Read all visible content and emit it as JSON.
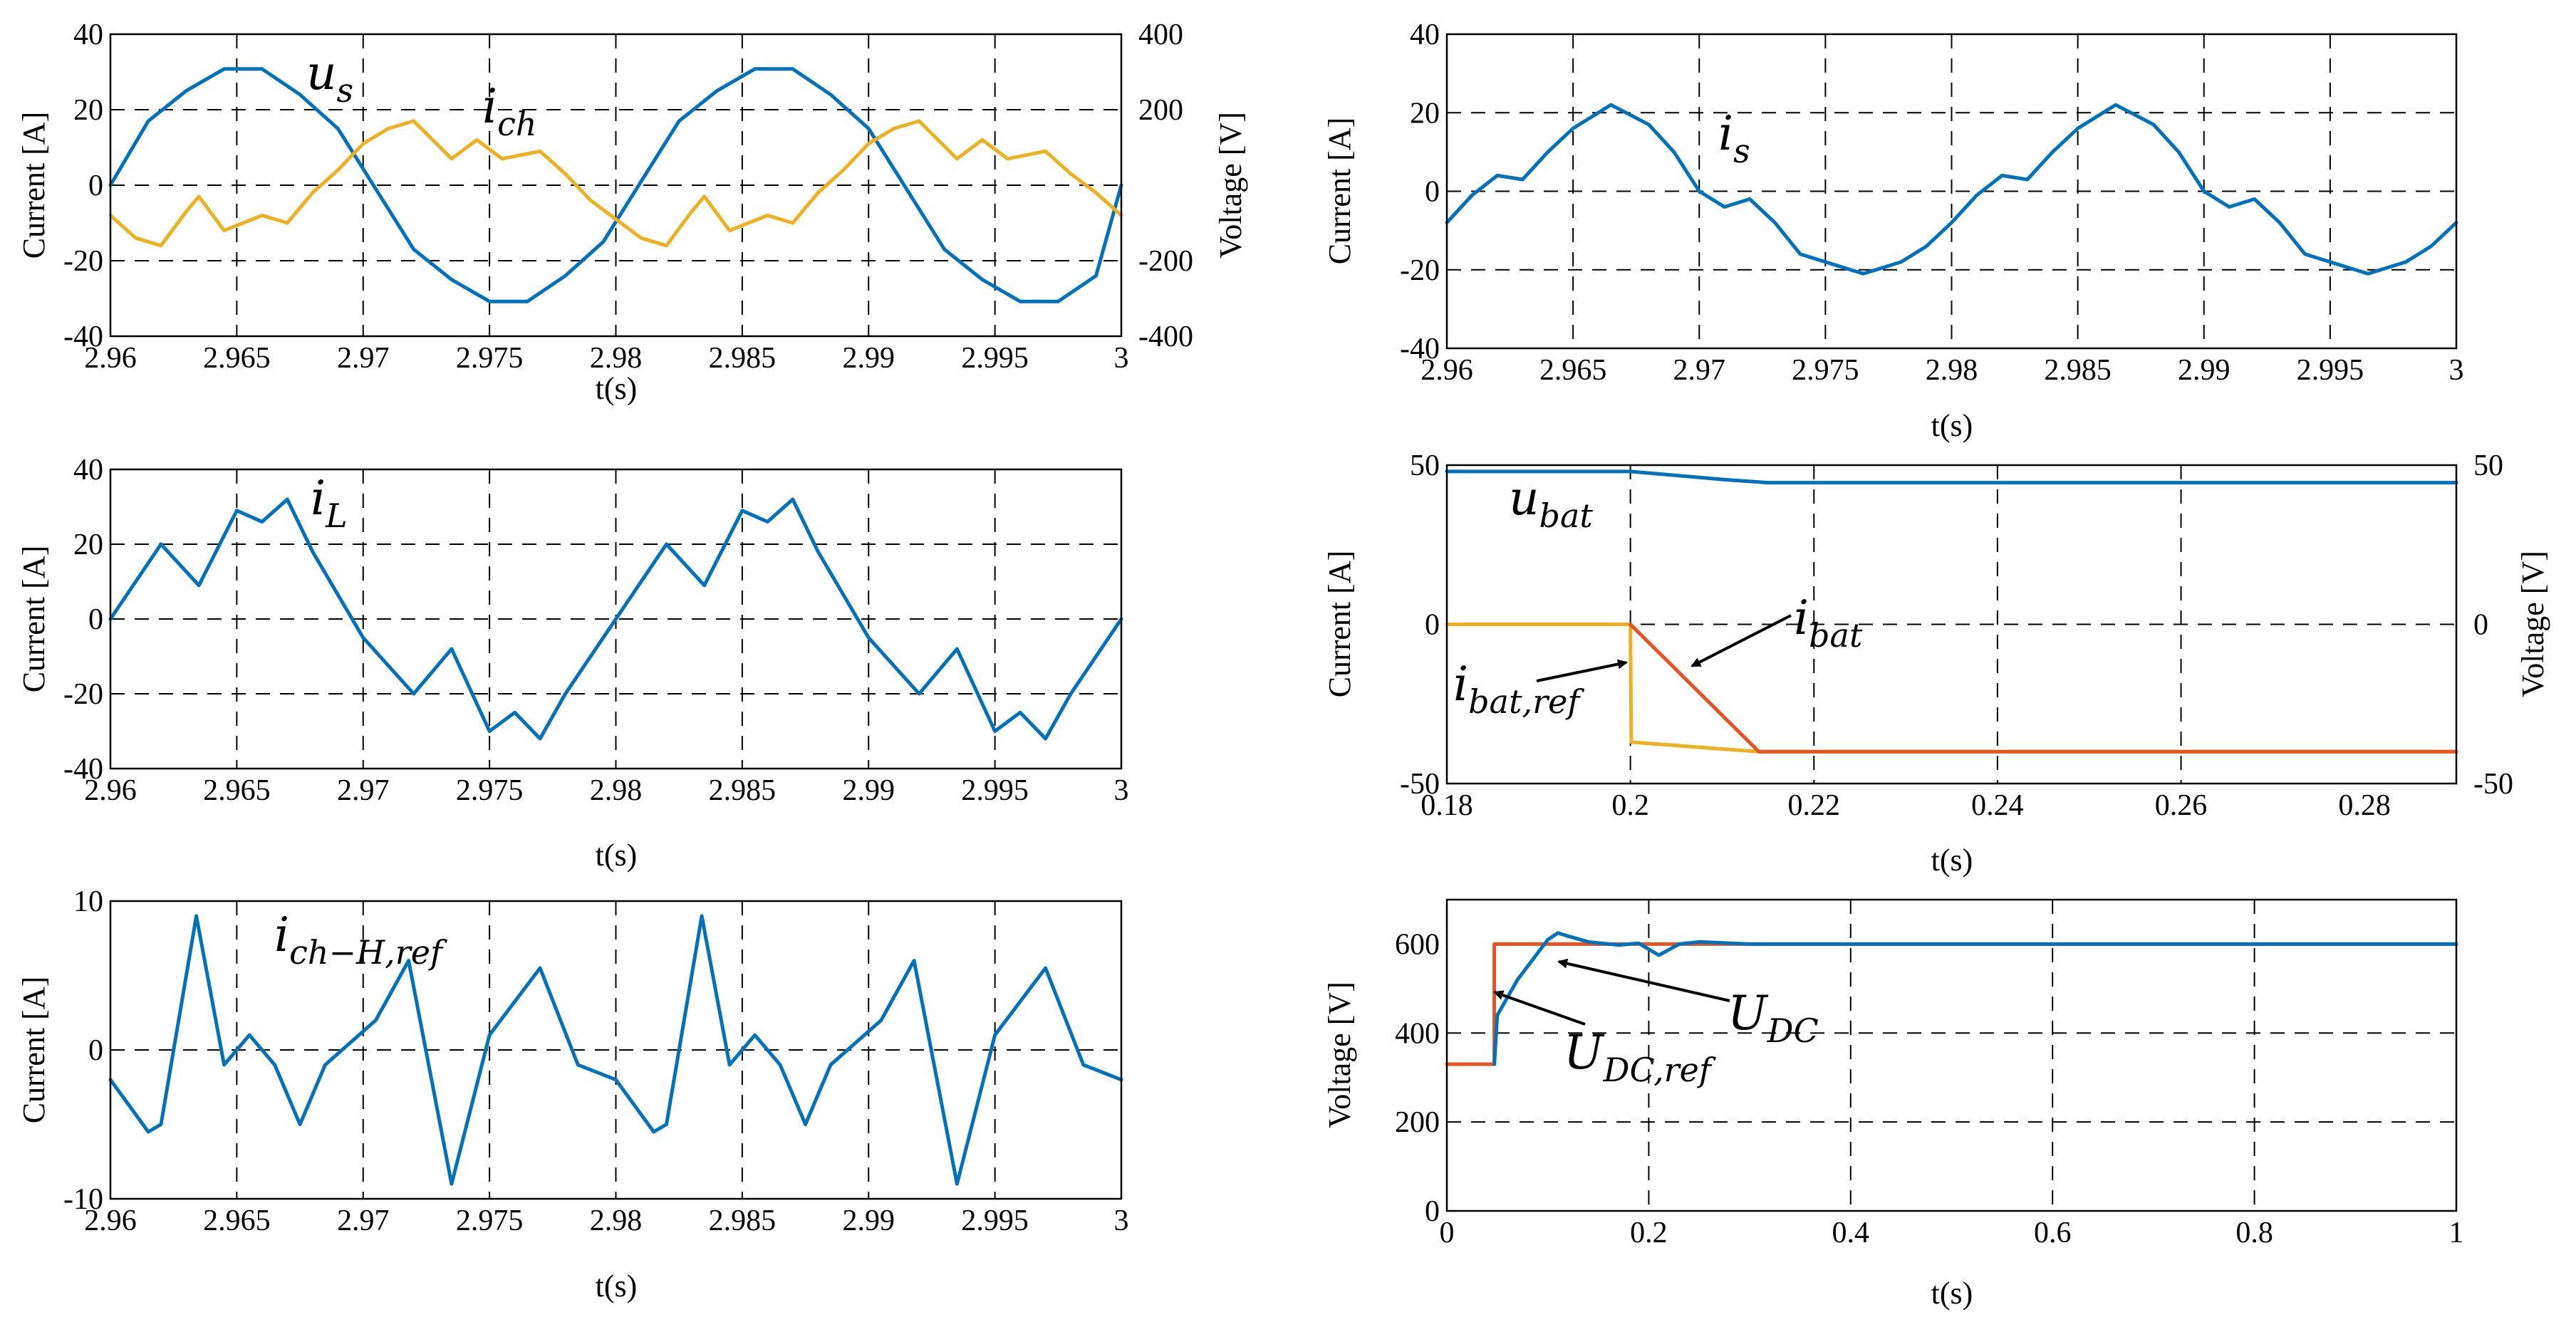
{
  "colors": {
    "blue": "#0072BD",
    "yellow": "#EDB120",
    "red": "#E8521E",
    "grid": "#000000"
  },
  "chart_data": [
    {
      "id": "p1",
      "type": "line",
      "xlabel": "t(s)",
      "ylabel": "Current [A]",
      "y2label": "Voltage [V]",
      "xlim": [
        2.96,
        3.0
      ],
      "ylim": [
        -40,
        40
      ],
      "y2lim": [
        -400,
        400
      ],
      "xticks": [
        "2.96",
        "2.965",
        "2.97",
        "2.975",
        "2.98",
        "2.985",
        "2.99",
        "2.995",
        "3"
      ],
      "yticks": [
        "-40",
        "-20",
        "0",
        "20",
        "40"
      ],
      "y2ticks": [
        "-400",
        "-200",
        "",
        "200",
        "400"
      ],
      "annotations": [
        {
          "main": "u",
          "sub": "s"
        },
        {
          "main": "i",
          "sub": "ch"
        }
      ],
      "series": [
        {
          "name": "u_s",
          "axis": "right",
          "color": "blue",
          "x": [
            2.96,
            2.9615,
            2.963,
            2.9645,
            2.966,
            2.9675,
            2.969,
            2.9705,
            2.972,
            2.9735,
            2.975,
            2.9765,
            2.978,
            2.9795,
            2.981,
            2.9825,
            2.984,
            2.9855,
            2.987,
            2.9885,
            2.99,
            2.9915,
            2.993,
            2.9945,
            2.996,
            2.9975,
            2.999,
            3.0
          ],
          "y": [
            0,
            170,
            250,
            308,
            308,
            240,
            150,
            -10,
            -170,
            -250,
            -308,
            -308,
            -240,
            -150,
            10,
            170,
            250,
            308,
            308,
            240,
            150,
            -10,
            -170,
            -250,
            -308,
            -308,
            -240,
            0
          ]
        },
        {
          "name": "i_ch",
          "axis": "left",
          "color": "yellow",
          "x": [
            2.96,
            2.961,
            2.962,
            2.963,
            2.9635,
            2.9645,
            2.966,
            2.967,
            2.968,
            2.969,
            2.97,
            2.971,
            2.972,
            2.9735,
            2.9745,
            2.9755,
            2.977,
            2.978,
            2.979,
            2.98,
            2.981,
            2.982,
            2.983,
            2.9835,
            2.9845,
            2.986,
            2.987,
            2.988,
            2.989,
            2.99,
            2.991,
            2.992,
            2.9935,
            2.9945,
            2.9955,
            2.997,
            2.998,
            2.999,
            3.0
          ],
          "y": [
            -8,
            -14,
            -16,
            -7,
            -3,
            -12,
            -8,
            -10,
            -2,
            4,
            11,
            15,
            17,
            7,
            12,
            7,
            9,
            3,
            -4,
            -9,
            -14,
            -16,
            -7,
            -3,
            -12,
            -8,
            -10,
            -2,
            4,
            11,
            15,
            17,
            7,
            12,
            7,
            9,
            3,
            -2,
            -8
          ]
        }
      ]
    },
    {
      "id": "p2",
      "type": "line",
      "xlabel": "t(s)",
      "ylabel": "Current [A]",
      "xlim": [
        2.96,
        3.0
      ],
      "ylim": [
        -40,
        40
      ],
      "xticks": [
        "2.96",
        "2.965",
        "2.97",
        "2.975",
        "2.98",
        "2.985",
        "2.99",
        "2.995",
        "3"
      ],
      "yticks": [
        "-40",
        "-20",
        "0",
        "20",
        "40"
      ],
      "annotations": [
        {
          "main": "i",
          "sub": "s"
        }
      ],
      "series": [
        {
          "name": "i_s",
          "axis": "left",
          "color": "blue",
          "x": [
            2.96,
            2.961,
            2.962,
            2.963,
            2.964,
            2.965,
            2.9665,
            2.968,
            2.969,
            2.97,
            2.971,
            2.972,
            2.973,
            2.974,
            2.975,
            2.976,
            2.9765,
            2.978,
            2.979,
            2.98,
            2.981,
            2.982,
            2.983,
            2.984,
            2.985,
            2.9865,
            2.988,
            2.989,
            2.99,
            2.991,
            2.992,
            2.993,
            2.994,
            2.995,
            2.996,
            2.9965,
            2.998,
            2.999,
            3.0
          ],
          "y": [
            -8,
            -1,
            4,
            3,
            10,
            16,
            22,
            17,
            10,
            0,
            -4,
            -2,
            -8,
            -16,
            -18,
            -20,
            -21,
            -18,
            -14,
            -8,
            -1,
            4,
            3,
            10,
            16,
            22,
            17,
            10,
            0,
            -4,
            -2,
            -8,
            -16,
            -18,
            -20,
            -21,
            -18,
            -14,
            -8
          ]
        }
      ]
    },
    {
      "id": "p3",
      "type": "line",
      "xlabel": "t(s)",
      "ylabel": "Current [A]",
      "xlim": [
        2.96,
        3.0
      ],
      "ylim": [
        -40,
        40
      ],
      "xticks": [
        "2.96",
        "2.965",
        "2.97",
        "2.975",
        "2.98",
        "2.985",
        "2.99",
        "2.995",
        "3"
      ],
      "yticks": [
        "-40",
        "-20",
        "0",
        "20",
        "40"
      ],
      "annotations": [
        {
          "main": "i",
          "sub": "L"
        }
      ],
      "series": [
        {
          "name": "i_L",
          "axis": "left",
          "color": "blue",
          "x": [
            2.96,
            2.962,
            2.9635,
            2.965,
            2.966,
            2.967,
            2.968,
            2.97,
            2.972,
            2.9735,
            2.975,
            2.976,
            2.977,
            2.978,
            2.98,
            2.982,
            2.9835,
            2.985,
            2.986,
            2.987,
            2.988,
            2.99,
            2.992,
            2.9935,
            2.995,
            2.996,
            2.997,
            2.998,
            3.0
          ],
          "y": [
            0,
            20,
            9,
            29,
            26,
            32,
            18,
            -5,
            -20,
            -8,
            -30,
            -25,
            -32,
            -20,
            0,
            20,
            9,
            29,
            26,
            32,
            18,
            -5,
            -20,
            -8,
            -30,
            -25,
            -32,
            -20,
            0
          ]
        }
      ]
    },
    {
      "id": "p4",
      "type": "line",
      "xlabel": "t(s)",
      "ylabel": "Current [A]",
      "y2label": "Voltage [V]",
      "xlim": [
        0.18,
        0.29
      ],
      "ylim": [
        -50,
        50
      ],
      "y2lim": [
        -50,
        50
      ],
      "xticks": [
        "0.18",
        "0.2",
        "0.22",
        "0.24",
        "0.26",
        "0.28"
      ],
      "yticks": [
        "-50",
        "0",
        "50"
      ],
      "y2ticks": [
        "-50",
        "0",
        "50"
      ],
      "annotations": [
        {
          "main": "u",
          "sub": "bat"
        },
        {
          "main": "i",
          "sub": "bat"
        },
        {
          "main": "i",
          "sub": "bat,ref"
        }
      ],
      "series": [
        {
          "name": "u_bat",
          "axis": "right",
          "color": "blue",
          "x": [
            0.18,
            0.2,
            0.21,
            0.215,
            0.29
          ],
          "y": [
            48,
            48,
            45.5,
            44.5,
            44.5
          ]
        },
        {
          "name": "i_bat,ref",
          "axis": "left",
          "color": "yellow",
          "x": [
            0.18,
            0.2,
            0.2001,
            0.214,
            0.29
          ],
          "y": [
            0,
            0,
            -37,
            -40,
            -40
          ]
        },
        {
          "name": "i_bat",
          "axis": "left",
          "color": "red",
          "x": [
            0.2,
            0.214,
            0.29
          ],
          "y": [
            0,
            -40,
            -40
          ]
        }
      ]
    },
    {
      "id": "p5",
      "type": "line",
      "xlabel": "t(s)",
      "ylabel": "Current [A]",
      "xlim": [
        2.96,
        3.0
      ],
      "ylim": [
        -10,
        10
      ],
      "xticks": [
        "2.96",
        "2.965",
        "2.97",
        "2.975",
        "2.98",
        "2.985",
        "2.99",
        "2.995",
        "3"
      ],
      "yticks": [
        "-10",
        "0",
        "10"
      ],
      "annotations": [
        {
          "main": "i",
          "sub": "ch−H,ref"
        }
      ],
      "series": [
        {
          "name": "i_ch-H,ref",
          "axis": "left",
          "color": "blue",
          "x": [
            2.96,
            2.9615,
            2.962,
            2.9634,
            2.9645,
            2.9655,
            2.9665,
            2.9675,
            2.9685,
            2.9705,
            2.9718,
            2.9735,
            2.975,
            2.977,
            2.9785,
            2.98,
            2.9815,
            2.982,
            2.9834,
            2.9845,
            2.9855,
            2.9865,
            2.9875,
            2.9885,
            2.9905,
            2.9918,
            2.9935,
            2.995,
            2.997,
            2.9985,
            3.0
          ],
          "y": [
            -2,
            -5.5,
            -5,
            9,
            -1,
            1,
            -1,
            -5,
            -1,
            2,
            6,
            -9,
            1,
            5.5,
            -1,
            -2,
            -5.5,
            -5,
            9,
            -1,
            1,
            -1,
            -5,
            -1,
            2,
            6,
            -9,
            1,
            5.5,
            -1,
            -2
          ]
        }
      ]
    },
    {
      "id": "p6",
      "type": "line",
      "xlabel": "t(s)",
      "ylabel": "Voltage [V]",
      "xlim": [
        0,
        1
      ],
      "ylim": [
        0,
        700
      ],
      "xticks": [
        "0",
        "0.2",
        "0.4",
        "0.6",
        "0.8",
        "1"
      ],
      "yticks": [
        "0",
        "200",
        "400",
        "600"
      ],
      "annotations": [
        {
          "main": "U",
          "sub": "DC"
        },
        {
          "main": "U",
          "sub": "DC,ref"
        }
      ],
      "series": [
        {
          "name": "U_DC,ref",
          "axis": "left",
          "color": "red",
          "x": [
            0,
            0.047,
            0.047,
            1.0
          ],
          "y": [
            330,
            330,
            600,
            600
          ]
        },
        {
          "name": "U_DC",
          "axis": "left",
          "color": "blue",
          "x": [
            0.047,
            0.05,
            0.06,
            0.07,
            0.08,
            0.09,
            0.1,
            0.11,
            0.12,
            0.14,
            0.17,
            0.19,
            0.21,
            0.23,
            0.25,
            0.3,
            1.0
          ],
          "y": [
            330,
            440,
            480,
            520,
            550,
            580,
            610,
            625,
            618,
            605,
            598,
            602,
            575,
            600,
            605,
            600,
            600
          ]
        }
      ]
    }
  ]
}
